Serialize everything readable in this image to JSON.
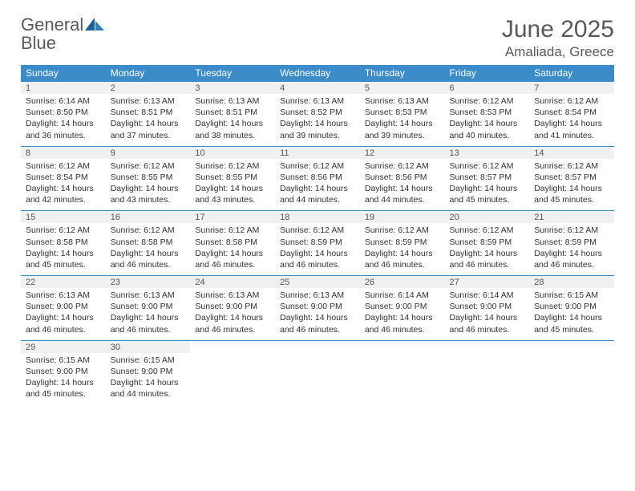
{
  "logo": {
    "text1": "General",
    "text2": "Blue"
  },
  "title": "June 2025",
  "location": "Amaliada, Greece",
  "colors": {
    "header_bg": "#3b8bc9",
    "header_text": "#ffffff",
    "daynum_bg": "#eef0f1",
    "border": "#3b8bc9",
    "page_bg": "#ffffff",
    "text": "#333333",
    "title_text": "#5a5a5a",
    "logo_blue": "#2f7fbf"
  },
  "weekdays": [
    "Sunday",
    "Monday",
    "Tuesday",
    "Wednesday",
    "Thursday",
    "Friday",
    "Saturday"
  ],
  "weeks": [
    [
      {
        "n": "1",
        "sr": "6:14 AM",
        "ss": "8:50 PM",
        "dl": "14 hours and 36 minutes."
      },
      {
        "n": "2",
        "sr": "6:13 AM",
        "ss": "8:51 PM",
        "dl": "14 hours and 37 minutes."
      },
      {
        "n": "3",
        "sr": "6:13 AM",
        "ss": "8:51 PM",
        "dl": "14 hours and 38 minutes."
      },
      {
        "n": "4",
        "sr": "6:13 AM",
        "ss": "8:52 PM",
        "dl": "14 hours and 39 minutes."
      },
      {
        "n": "5",
        "sr": "6:13 AM",
        "ss": "8:53 PM",
        "dl": "14 hours and 39 minutes."
      },
      {
        "n": "6",
        "sr": "6:12 AM",
        "ss": "8:53 PM",
        "dl": "14 hours and 40 minutes."
      },
      {
        "n": "7",
        "sr": "6:12 AM",
        "ss": "8:54 PM",
        "dl": "14 hours and 41 minutes."
      }
    ],
    [
      {
        "n": "8",
        "sr": "6:12 AM",
        "ss": "8:54 PM",
        "dl": "14 hours and 42 minutes."
      },
      {
        "n": "9",
        "sr": "6:12 AM",
        "ss": "8:55 PM",
        "dl": "14 hours and 43 minutes."
      },
      {
        "n": "10",
        "sr": "6:12 AM",
        "ss": "8:55 PM",
        "dl": "14 hours and 43 minutes."
      },
      {
        "n": "11",
        "sr": "6:12 AM",
        "ss": "8:56 PM",
        "dl": "14 hours and 44 minutes."
      },
      {
        "n": "12",
        "sr": "6:12 AM",
        "ss": "8:56 PM",
        "dl": "14 hours and 44 minutes."
      },
      {
        "n": "13",
        "sr": "6:12 AM",
        "ss": "8:57 PM",
        "dl": "14 hours and 45 minutes."
      },
      {
        "n": "14",
        "sr": "6:12 AM",
        "ss": "8:57 PM",
        "dl": "14 hours and 45 minutes."
      }
    ],
    [
      {
        "n": "15",
        "sr": "6:12 AM",
        "ss": "8:58 PM",
        "dl": "14 hours and 45 minutes."
      },
      {
        "n": "16",
        "sr": "6:12 AM",
        "ss": "8:58 PM",
        "dl": "14 hours and 46 minutes."
      },
      {
        "n": "17",
        "sr": "6:12 AM",
        "ss": "8:58 PM",
        "dl": "14 hours and 46 minutes."
      },
      {
        "n": "18",
        "sr": "6:12 AM",
        "ss": "8:59 PM",
        "dl": "14 hours and 46 minutes."
      },
      {
        "n": "19",
        "sr": "6:12 AM",
        "ss": "8:59 PM",
        "dl": "14 hours and 46 minutes."
      },
      {
        "n": "20",
        "sr": "6:12 AM",
        "ss": "8:59 PM",
        "dl": "14 hours and 46 minutes."
      },
      {
        "n": "21",
        "sr": "6:12 AM",
        "ss": "8:59 PM",
        "dl": "14 hours and 46 minutes."
      }
    ],
    [
      {
        "n": "22",
        "sr": "6:13 AM",
        "ss": "9:00 PM",
        "dl": "14 hours and 46 minutes."
      },
      {
        "n": "23",
        "sr": "6:13 AM",
        "ss": "9:00 PM",
        "dl": "14 hours and 46 minutes."
      },
      {
        "n": "24",
        "sr": "6:13 AM",
        "ss": "9:00 PM",
        "dl": "14 hours and 46 minutes."
      },
      {
        "n": "25",
        "sr": "6:13 AM",
        "ss": "9:00 PM",
        "dl": "14 hours and 46 minutes."
      },
      {
        "n": "26",
        "sr": "6:14 AM",
        "ss": "9:00 PM",
        "dl": "14 hours and 46 minutes."
      },
      {
        "n": "27",
        "sr": "6:14 AM",
        "ss": "9:00 PM",
        "dl": "14 hours and 46 minutes."
      },
      {
        "n": "28",
        "sr": "6:15 AM",
        "ss": "9:00 PM",
        "dl": "14 hours and 45 minutes."
      }
    ],
    [
      {
        "n": "29",
        "sr": "6:15 AM",
        "ss": "9:00 PM",
        "dl": "14 hours and 45 minutes."
      },
      {
        "n": "30",
        "sr": "6:15 AM",
        "ss": "9:00 PM",
        "dl": "14 hours and 44 minutes."
      },
      null,
      null,
      null,
      null,
      null
    ]
  ],
  "labels": {
    "sunrise": "Sunrise:",
    "sunset": "Sunset:",
    "daylight": "Daylight:"
  }
}
